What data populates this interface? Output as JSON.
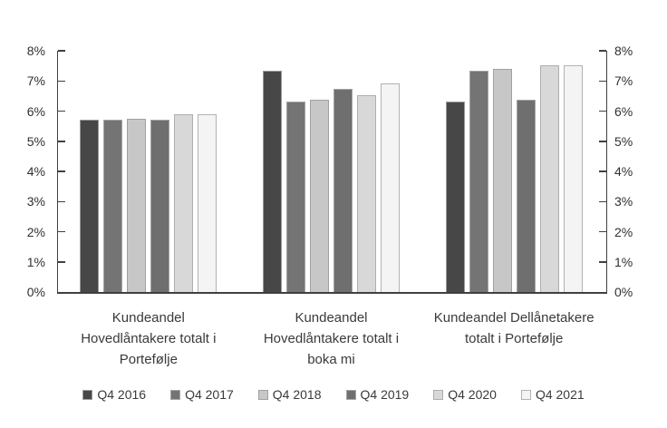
{
  "chart_data": {
    "type": "bar",
    "title": "",
    "categories": [
      "Kundeandel\nHovedlåntakere totalt i\nPortefølje",
      "Kundeandel\nHovedlåntakere totalt i\nboka mi",
      "Kundeandel Dellånetakere\ntotalt i Portefølje"
    ],
    "series": [
      {
        "name": "Q4 2016",
        "color": "#474747",
        "border": "#9a9a9a",
        "values": [
          5.7,
          7.34,
          6.33
        ]
      },
      {
        "name": "Q4 2017",
        "color": "#747474",
        "border": "#a5a5a5",
        "values": [
          5.7,
          6.33,
          7.34
        ]
      },
      {
        "name": "Q4 2018",
        "color": "#c7c7c7",
        "border": "#a0a0a0",
        "values": [
          5.73,
          6.38,
          7.39
        ]
      },
      {
        "name": "Q4 2019",
        "color": "#6f6f6f",
        "border": "#a5a5a5",
        "values": [
          5.72,
          6.75,
          6.37
        ]
      },
      {
        "name": "Q4 2020",
        "color": "#d8d8d8",
        "border": "#aeaeae",
        "values": [
          5.89,
          6.53,
          7.53
        ]
      },
      {
        "name": "Q4 2021",
        "color": "#f4f4f4",
        "border": "#b2b2b2",
        "values": [
          5.89,
          6.93,
          7.53
        ]
      }
    ],
    "y_axis": {
      "min": 0,
      "max": 8,
      "step": 1,
      "tick_labels": [
        "0%",
        "1%",
        "2%",
        "3%",
        "4%",
        "5%",
        "6%",
        "7%",
        "8%"
      ],
      "mirrored_right_axis": true
    },
    "grid": false,
    "legend_position": "bottom",
    "axis_color": "#404040"
  }
}
